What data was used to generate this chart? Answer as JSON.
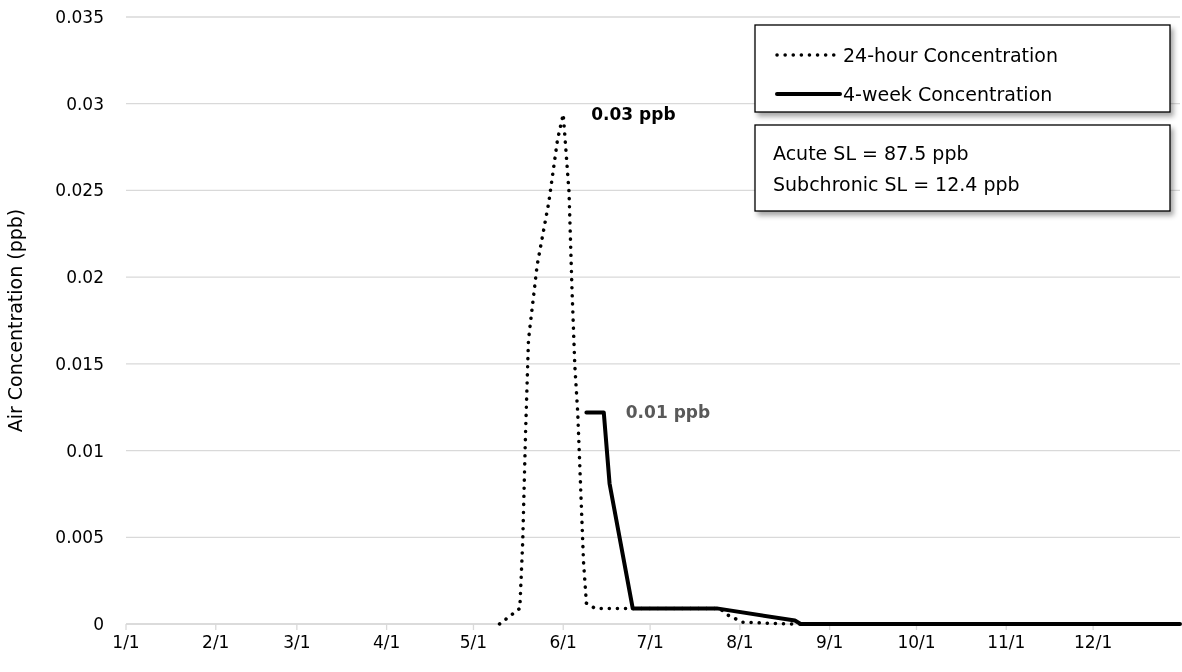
{
  "chart_data": {
    "type": "line",
    "ylabel": "Air Concentration (ppb)",
    "xlim": [
      "--01-01",
      "--12-31"
    ],
    "xticks": [
      {
        "value": "--01-01",
        "label": "1/1"
      },
      {
        "value": "--02-01",
        "label": "2/1"
      },
      {
        "value": "--03-01",
        "label": "3/1"
      },
      {
        "value": "--04-01",
        "label": "4/1"
      },
      {
        "value": "--05-01",
        "label": "5/1"
      },
      {
        "value": "--06-01",
        "label": "6/1"
      },
      {
        "value": "--07-01",
        "label": "7/1"
      },
      {
        "value": "--08-01",
        "label": "8/1"
      },
      {
        "value": "--09-01",
        "label": "9/1"
      },
      {
        "value": "--10-01",
        "label": "10/1"
      },
      {
        "value": "--11-01",
        "label": "11/1"
      },
      {
        "value": "--12-01",
        "label": "12/1"
      }
    ],
    "ylim": [
      0,
      0.035
    ],
    "yticks": [
      0,
      0.005,
      0.01,
      0.015,
      0.02,
      0.025,
      0.03,
      0.035
    ],
    "grid": "y",
    "legend": "top right",
    "marker": "none",
    "series": [
      {
        "name": "24-hour Concentration",
        "color": "#000000",
        "line_style": "dotted",
        "x": [
          "--05-10",
          "--05-17",
          "--05-18",
          "--05-19",
          "--05-20",
          "--05-23",
          "--05-27",
          "--05-30",
          "--06-01",
          "--06-03",
          "--06-04",
          "--06-05",
          "--06-06",
          "--06-07",
          "--06-08",
          "--06-09",
          "--06-12",
          "--07-25",
          "--07-28",
          "--08-02",
          "--08-19",
          "--12-31"
        ],
        "values": [
          0,
          0.0009,
          0.0047,
          0.0111,
          0.0164,
          0.0207,
          0.0243,
          0.0279,
          0.0294,
          0.0249,
          0.0194,
          0.0149,
          0.0122,
          0.0079,
          0.0036,
          0.0012,
          0.0009,
          0.0009,
          0.0005,
          0.0001,
          0,
          0
        ]
      },
      {
        "name": "4-week Concentration",
        "color": "#000000",
        "line_style": "solid",
        "x": [
          "--06-09",
          "--06-15",
          "--06-17",
          "--06-25",
          "--07-24",
          "--08-20",
          "--08-22",
          "--12-31"
        ],
        "values": [
          0.0122,
          0.0122,
          0.0081,
          0.0009,
          0.0009,
          0.0002,
          0,
          0
        ]
      }
    ],
    "annotations": [
      {
        "text": "0.03 ppb",
        "x": "--06-01",
        "y": 0.0294
      },
      {
        "text": "0.01 ppb",
        "x": "--06-15",
        "y": 0.0122
      },
      "Acute SL = 87.5 ppb",
      "Subchronic SL = 12.4 ppb"
    ]
  }
}
